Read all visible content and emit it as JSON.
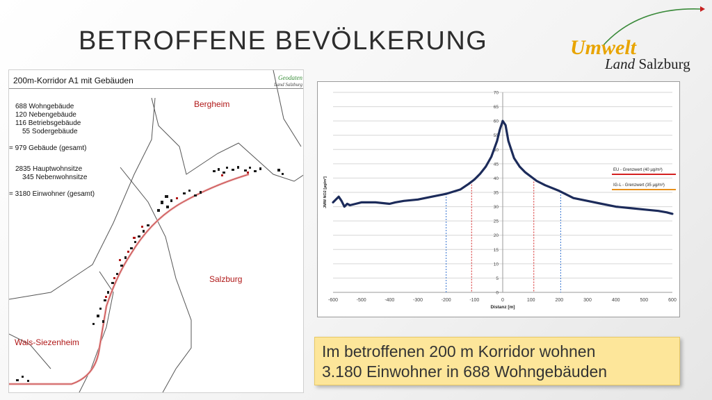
{
  "slide": {
    "title": "BETROFFENE BEVÖLKERUNG"
  },
  "logo": {
    "line1": "Umwelt",
    "line2a": "Land ",
    "line2b": "Salzburg"
  },
  "map": {
    "title": "200m-Korridor A1 mit Gebäuden",
    "logo_line1": "Geodaten",
    "logo_line2": "Land Salzburg",
    "stats": [
      "688 Wohngebäude",
      "120 Nebengebäude",
      "116 Betriebsgebäude",
      "55 Sodergebäude",
      "=  979 Gebäude (gesamt)",
      "2835 Hauptwohnsitze",
      "345 Nebenwohnsitze",
      "=  3180 Einwohner (gesamt)"
    ],
    "places": [
      "Bergheim",
      "Salzburg",
      "Wals-Siezenheim"
    ]
  },
  "chart_data": {
    "type": "line",
    "ylabel": "JMW NO2 [µg/m³]",
    "xlabel": "Distanz [m]",
    "xlim": [
      -600,
      600
    ],
    "ylim": [
      0,
      70
    ],
    "xticks": [
      -600,
      -500,
      -400,
      -300,
      -200,
      -100,
      0,
      100,
      200,
      300,
      400,
      500,
      600
    ],
    "yticks": [
      0,
      5,
      10,
      15,
      20,
      25,
      30,
      35,
      40,
      45,
      50,
      55,
      60,
      65,
      70
    ],
    "grid": "horizontal",
    "legend_position": "right",
    "series": [
      {
        "color": "#1c2b5a",
        "x": [
          -600,
          -590,
          -580,
          -570,
          -560,
          -550,
          -540,
          -520,
          -500,
          -480,
          -450,
          -400,
          -380,
          -350,
          -300,
          -250,
          -200,
          -150,
          -120,
          -100,
          -80,
          -60,
          -40,
          -20,
          -10,
          0,
          10,
          20,
          40,
          60,
          80,
          100,
          120,
          150,
          200,
          250,
          300,
          350,
          400,
          450,
          500,
          550,
          580,
          600
        ],
        "y": [
          31.5,
          32.5,
          33.5,
          32.0,
          30.0,
          31.0,
          30.5,
          31.0,
          31.5,
          31.5,
          31.5,
          31.0,
          31.5,
          32.0,
          32.5,
          33.5,
          34.5,
          36.0,
          38.0,
          39.5,
          41.5,
          44.0,
          47.5,
          53.0,
          57.0,
          60.0,
          58.5,
          53.0,
          47.0,
          44.0,
          42.0,
          40.5,
          39.0,
          37.5,
          35.5,
          33.0,
          32.0,
          31.0,
          30.0,
          29.5,
          29.0,
          28.5,
          28.0,
          27.5
        ]
      }
    ],
    "thresholds": [
      {
        "name": "EU - Grenzwert (40 µg/m³)",
        "value": 40,
        "color": "#d42020",
        "x_crossings": [
          -110,
          110
        ]
      },
      {
        "name": "IG-L - Grenzwert (35 µg/m³)",
        "value": 35,
        "color": "#e8901a",
        "x_crossings": [
          -200,
          205
        ]
      }
    ],
    "crossing_lines": [
      {
        "x": -200,
        "color": "#2f6fd0"
      },
      {
        "x": -110,
        "color": "#d42020"
      },
      {
        "x": 110,
        "color": "#d42020"
      },
      {
        "x": 205,
        "color": "#2f6fd0"
      }
    ]
  },
  "callout": {
    "line1": "Im betroffenen 200 m Korridor wohnen",
    "line2": "3.180 Einwohner in 688 Wohngebäuden"
  }
}
